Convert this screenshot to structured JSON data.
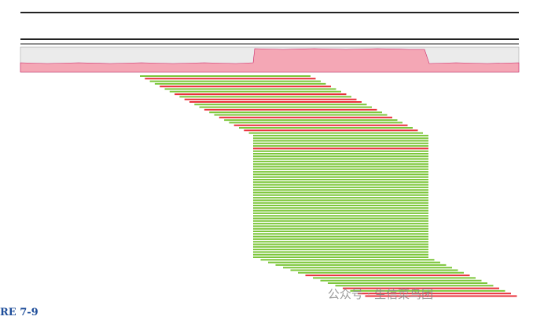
{
  "figure_label": "RE 7-9",
  "watermark": "公众号 · 生信菜鸟团"
}
